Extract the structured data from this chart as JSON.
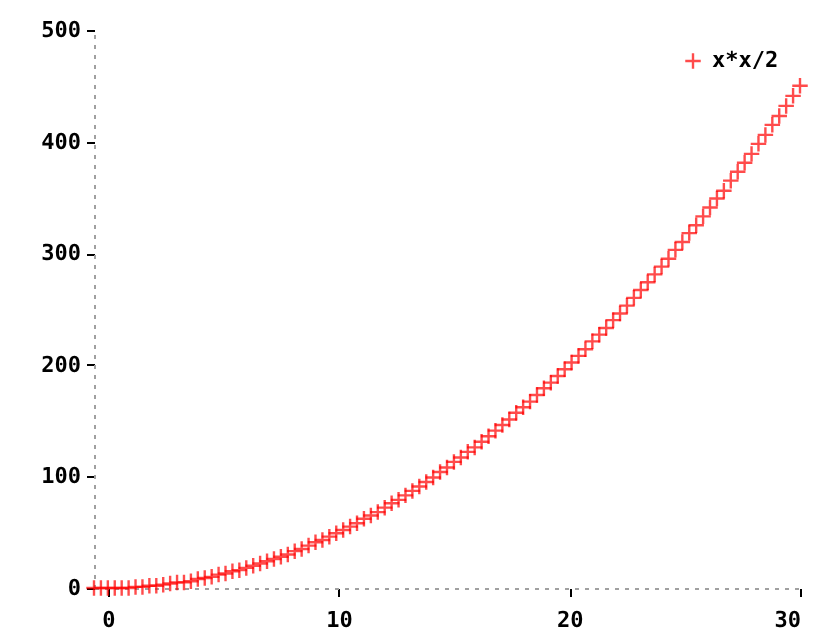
{
  "chart_data": {
    "type": "scatter",
    "marker": "cross",
    "legend": "top right",
    "grid": false,
    "xlim": [
      -0.6,
      30
    ],
    "xticks": [
      0,
      10,
      20,
      30
    ],
    "ylim": [
      0,
      500
    ],
    "yticks": [
      0,
      100,
      200,
      300,
      400,
      500
    ],
    "series": [
      {
        "name": "x*x/2",
        "color": "#ff0000",
        "x": [
          -0.6,
          -0.3,
          0,
          0.3,
          0.6,
          0.9,
          1.2,
          1.5,
          1.8,
          2.1,
          2.4,
          2.7,
          3,
          3.3,
          3.6,
          3.9,
          4.2,
          4.5,
          4.8,
          5.1,
          5.4,
          5.7,
          6,
          6.3,
          6.6,
          6.9,
          7.2,
          7.5,
          7.8,
          8.1,
          8.4,
          8.7,
          9,
          9.3,
          9.6,
          9.9,
          10.2,
          10.5,
          10.8,
          11.1,
          11.4,
          11.7,
          12,
          12.3,
          12.6,
          12.9,
          13.2,
          13.5,
          13.8,
          14.1,
          14.4,
          14.7,
          15,
          15.3,
          15.6,
          15.9,
          16.2,
          16.5,
          16.8,
          17.1,
          17.4,
          17.7,
          18,
          18.3,
          18.6,
          18.9,
          19.2,
          19.5,
          19.8,
          20.1,
          20.4,
          20.7,
          21,
          21.3,
          21.6,
          21.9,
          22.2,
          22.5,
          22.8,
          23.1,
          23.4,
          23.7,
          24,
          24.3,
          24.6,
          24.9,
          25.2,
          25.5,
          25.8,
          26.1,
          26.4,
          26.7,
          27,
          27.3,
          27.6,
          27.9,
          28.2,
          28.5,
          28.8,
          29.1,
          29.4,
          29.7,
          30
        ],
        "values": [
          0,
          0,
          0,
          0,
          0,
          0,
          1,
          1,
          2,
          2,
          3,
          4,
          5,
          5,
          6,
          8,
          9,
          10,
          12,
          13,
          15,
          16,
          18,
          20,
          22,
          24,
          26,
          28,
          30,
          33,
          35,
          38,
          41,
          43,
          46,
          49,
          52,
          55,
          58,
          62,
          65,
          68,
          72,
          76,
          79,
          83,
          87,
          91,
          95,
          99,
          104,
          108,
          113,
          117,
          122,
          126,
          131,
          136,
          141,
          146,
          151,
          157,
          162,
          167,
          173,
          179,
          184,
          190,
          196,
          202,
          208,
          214,
          221,
          227,
          233,
          240,
          246,
          253,
          260,
          267,
          274,
          281,
          288,
          295,
          303,
          310,
          318,
          325,
          333,
          341,
          349,
          356,
          365,
          373,
          381,
          389,
          398,
          406,
          415,
          423,
          432,
          441,
          450
        ]
      }
    ]
  }
}
